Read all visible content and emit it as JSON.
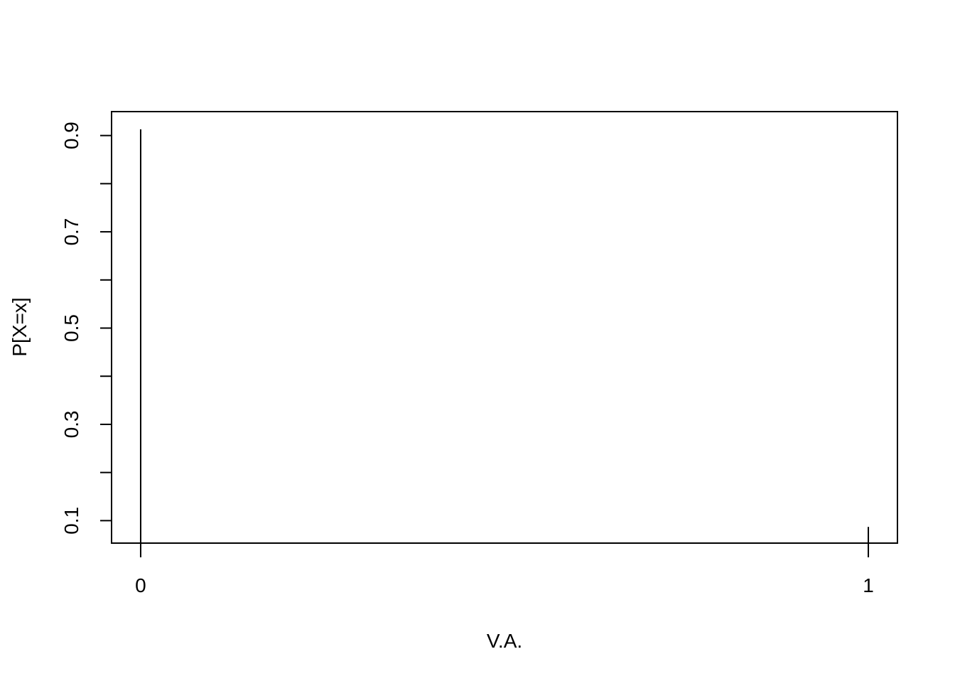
{
  "chart_data": {
    "type": "bar",
    "title": "",
    "xlabel": "V.A.",
    "ylabel": "P[X=x]",
    "x": [
      0,
      1
    ],
    "values": [
      0.913,
      0.087
    ],
    "x_ticks": [
      "0",
      "1"
    ],
    "y_ticks": [
      0.1,
      0.2,
      0.3,
      0.4,
      0.5,
      0.6,
      0.7,
      0.8,
      0.9
    ],
    "y_tick_labels": [
      "0.1",
      "0.3",
      "0.5",
      "0.7",
      "0.9"
    ],
    "xlim": [
      -0.04,
      1.04
    ],
    "ylim": [
      0.0533,
      0.9497
    ],
    "grid": false,
    "line_color": "#000000"
  }
}
